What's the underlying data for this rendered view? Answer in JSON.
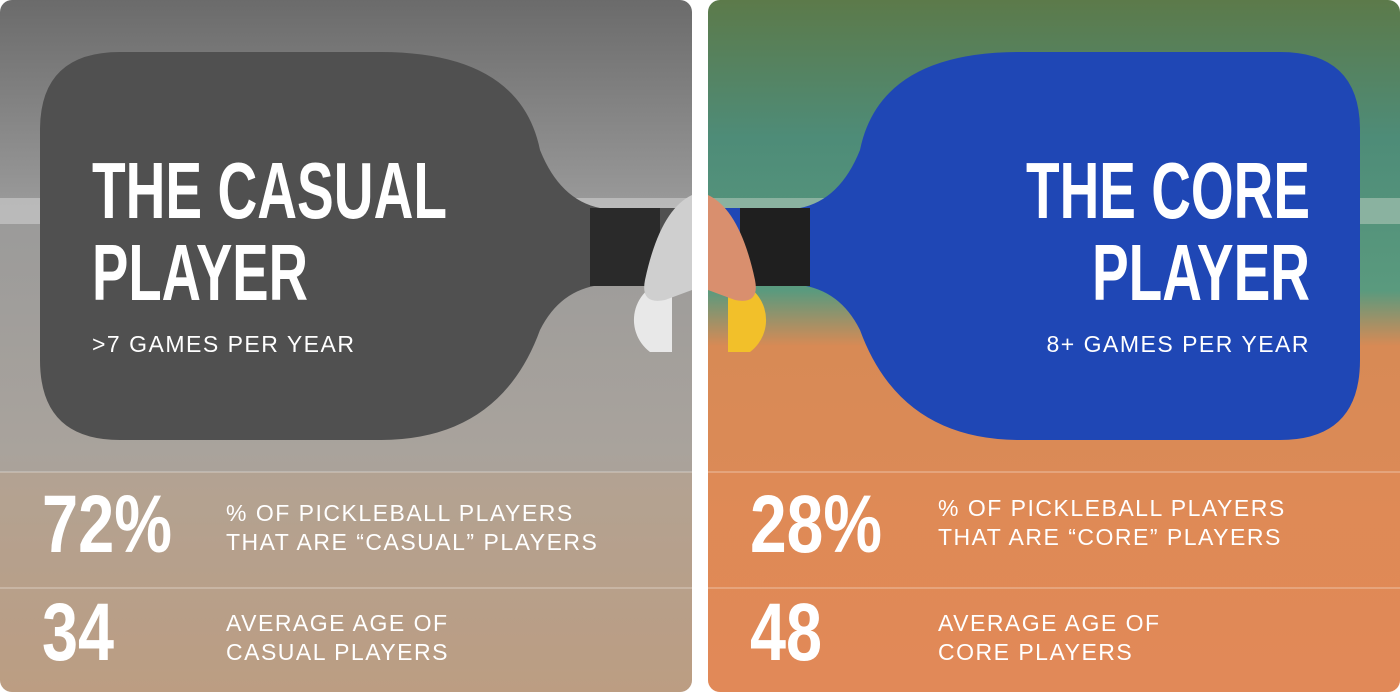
{
  "cards": [
    {
      "title_lines": [
        "THE CASUAL",
        "PLAYER"
      ],
      "subtitle": ">7 GAMES PER YEAR",
      "stats": [
        {
          "figure": "72%",
          "label_lines": [
            "% OF PICKLEBALL PLAYERS",
            "THAT ARE “CASUAL” PLAYERS"
          ]
        },
        {
          "figure": "34",
          "label_lines": [
            "AVERAGE AGE OF",
            "CASUAL PLAYERS"
          ]
        }
      ]
    },
    {
      "title_lines": [
        "THE CORE",
        "PLAYER"
      ],
      "subtitle": "8+ GAMES PER YEAR",
      "stats": [
        {
          "figure": "28%",
          "label_lines": [
            "% OF PICKLEBALL PLAYERS",
            "THAT ARE “CORE” PLAYERS"
          ]
        },
        {
          "figure": "48",
          "label_lines": [
            "AVERAGE AGE OF",
            "CORE PLAYERS"
          ]
        }
      ]
    }
  ]
}
